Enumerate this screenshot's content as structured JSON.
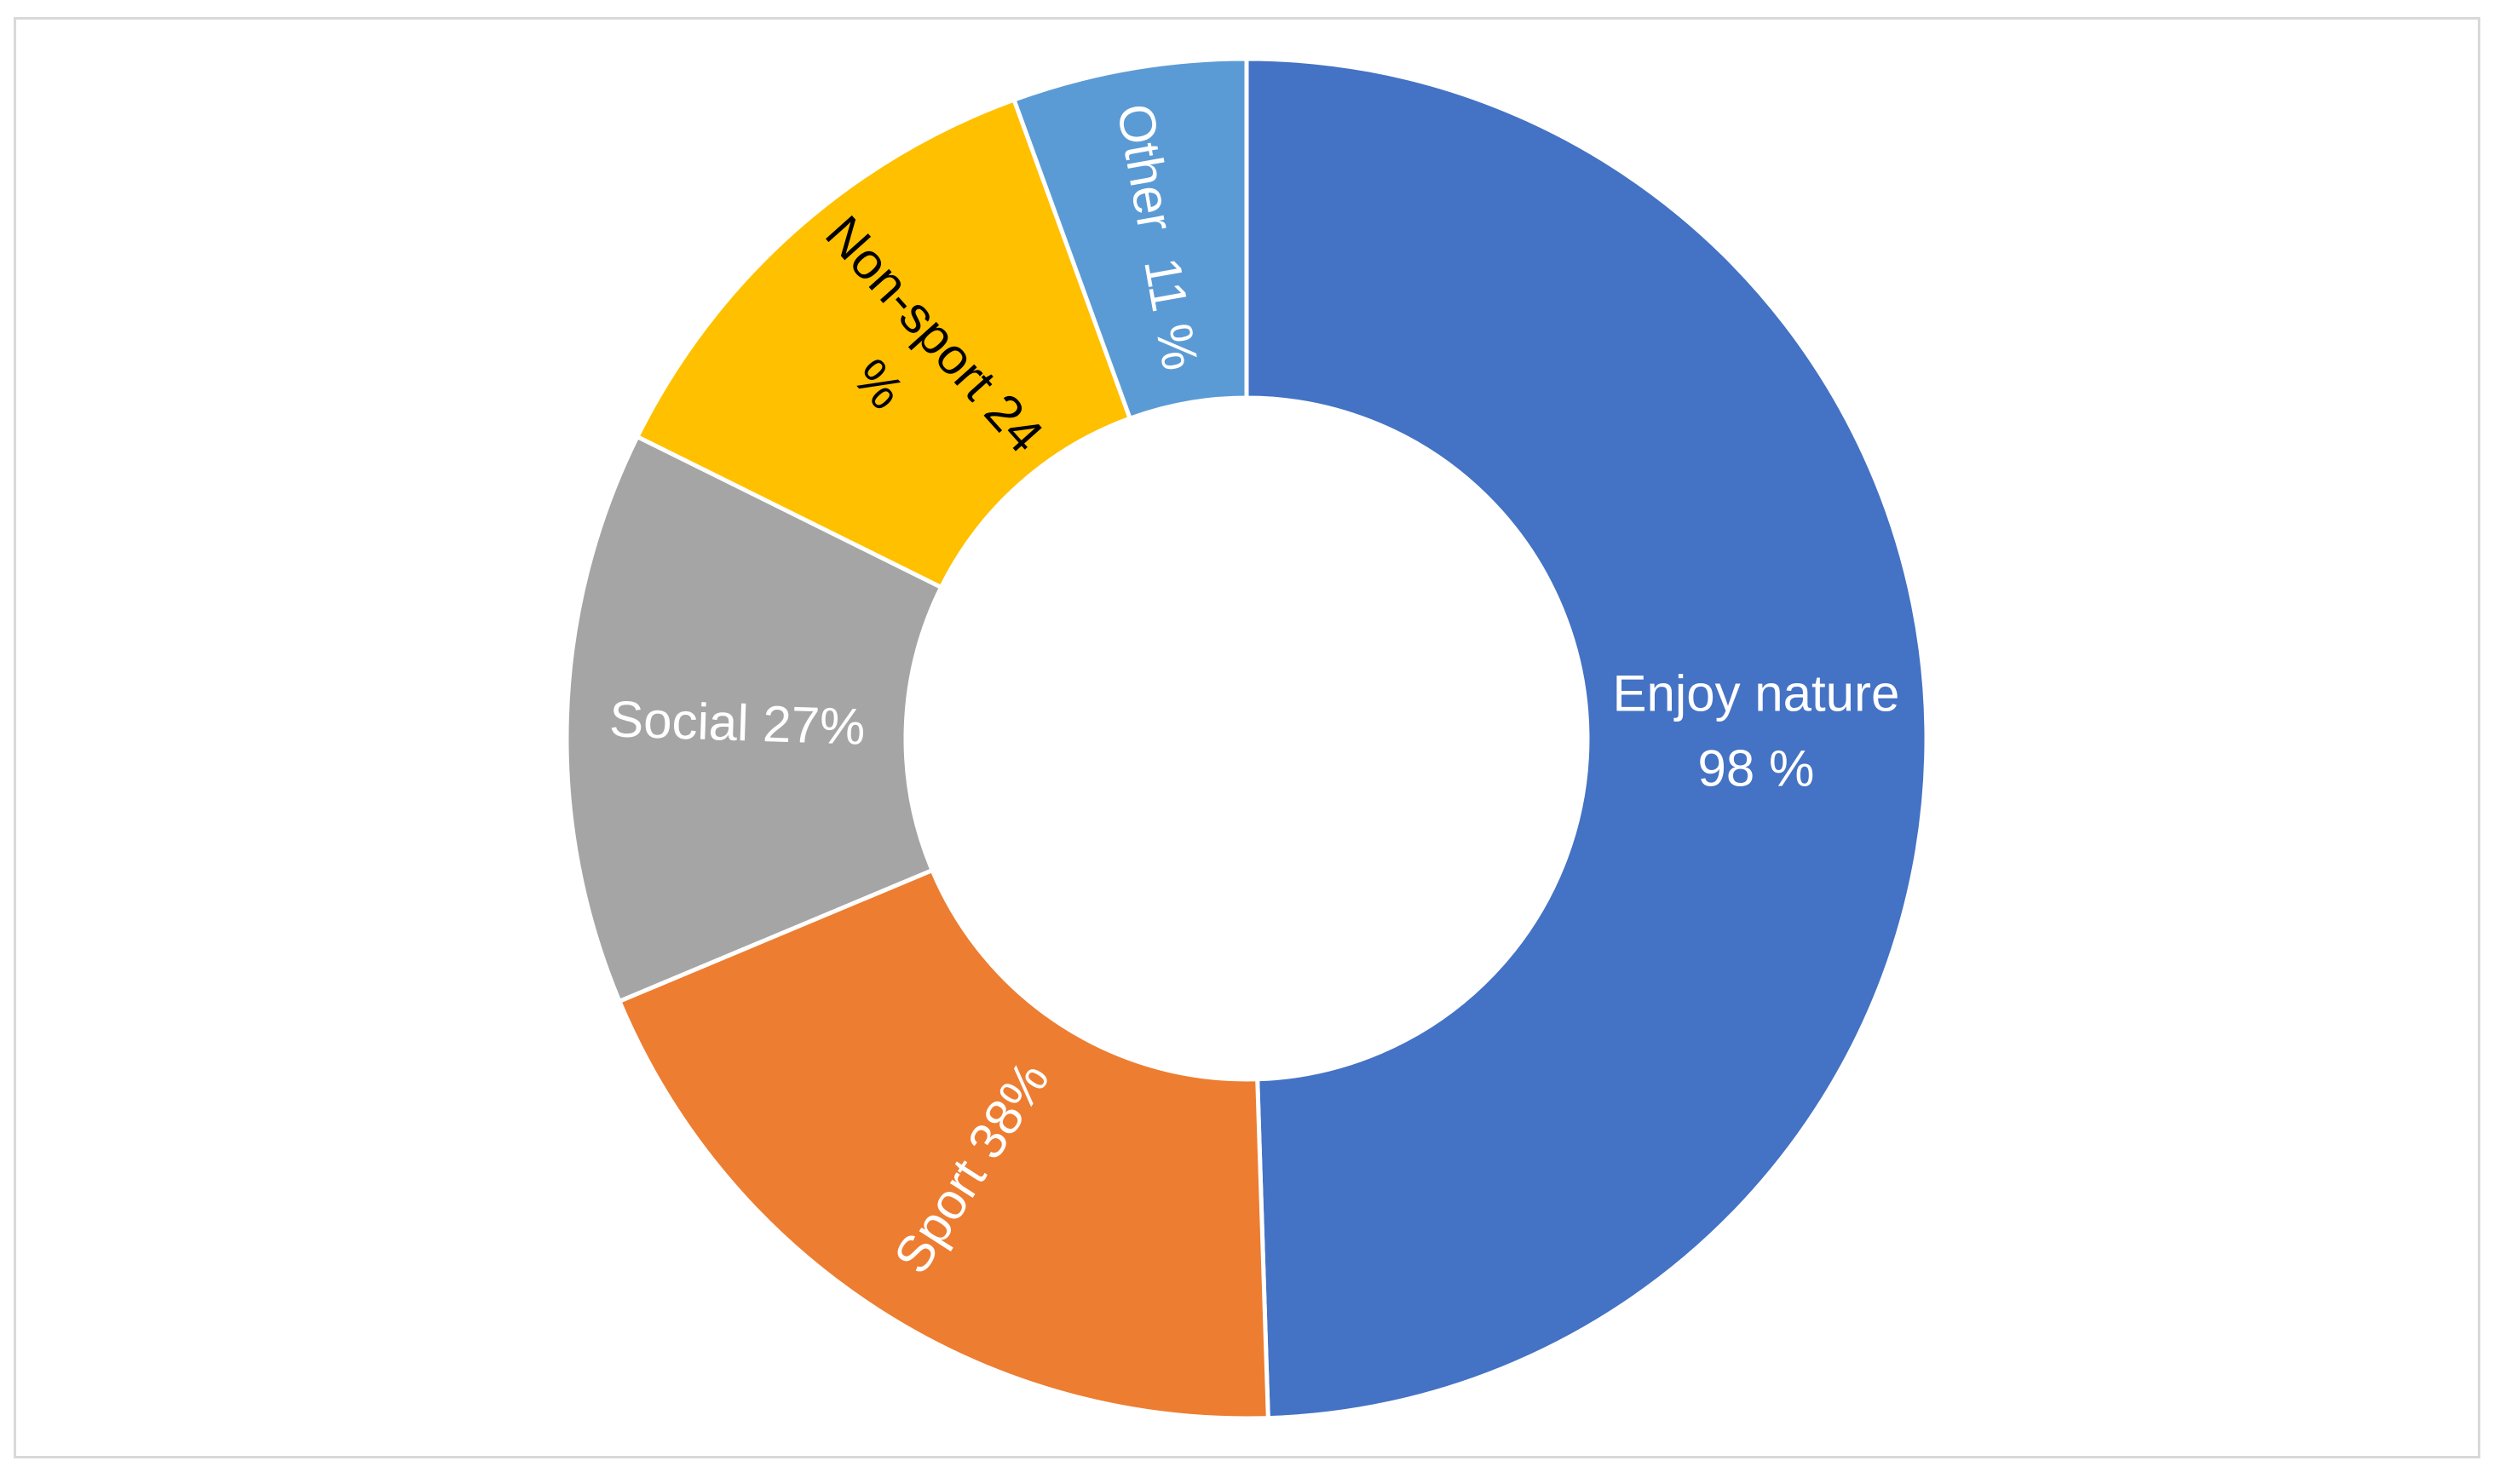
{
  "chart_data": {
    "type": "pie",
    "donut": true,
    "title": "",
    "legend": "none",
    "slices": [
      {
        "name": "Enjoy nature",
        "label_lines": [
          "Enjoy nature",
          "98 %"
        ],
        "value": 98,
        "color": "#4472C4",
        "label_color": "#ffffff"
      },
      {
        "name": "Sport",
        "label_lines": [
          "Sport 38%"
        ],
        "value": 38,
        "color": "#ED7D31",
        "label_color": "#ffffff"
      },
      {
        "name": "Social",
        "label_lines": [
          "Social 27%"
        ],
        "value": 27,
        "color": "#A5A5A5",
        "label_color": "#ffffff"
      },
      {
        "name": "Non-sport",
        "label_lines": [
          "Non-sport 24",
          "%"
        ],
        "value": 24,
        "color": "#FFC000",
        "label_color": "#000000"
      },
      {
        "name": "Other",
        "label_lines": [
          "Other  11 %"
        ],
        "value": 11,
        "color": "#5B9BD5",
        "label_color": "#ffffff"
      }
    ]
  }
}
